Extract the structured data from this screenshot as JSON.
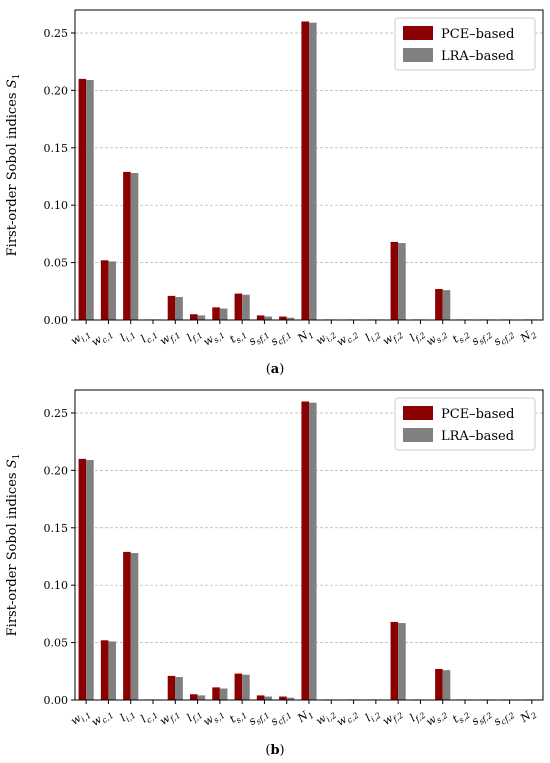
{
  "colors": {
    "pce": "#8b0000",
    "lra": "#808080",
    "grid": "#b0b0b0",
    "axis": "#000000"
  },
  "chart_data": [
    {
      "panel": "a",
      "type": "bar",
      "ylabel": "First-order Sobol indices S₁",
      "ylim": [
        0,
        0.27
      ],
      "yticks": [
        "0.00",
        "0.05",
        "0.10",
        "0.15",
        "0.20",
        "0.25"
      ],
      "grid": "horizontal-dashed",
      "legend": "top-right",
      "categories": [
        "w_i,1",
        "w_c,1",
        "l_i,1",
        "l_c,1",
        "w_f,1",
        "l_f,1",
        "w_s,1",
        "t_s,1",
        "s_sf,1",
        "s_cf,1",
        "N_1",
        "w_i,2",
        "w_c,2",
        "l_i,2",
        "w_f,2",
        "l_f,2",
        "w_s,2",
        "t_s,2",
        "s_sf,2",
        "s_cf,2",
        "N_2"
      ],
      "series": [
        {
          "name": "PCE–based",
          "values": [
            0.21,
            0.052,
            0.129,
            0.0005,
            0.021,
            0.005,
            0.011,
            0.023,
            0.004,
            0.003,
            0.26,
            0.0005,
            0.0005,
            0.0005,
            0.068,
            0.0005,
            0.027,
            0.0005,
            0.0005,
            0.0005,
            0.0005
          ]
        },
        {
          "name": "LRA–based",
          "values": [
            0.209,
            0.051,
            0.128,
            0.0005,
            0.02,
            0.004,
            0.01,
            0.022,
            0.003,
            0.002,
            0.259,
            0.0005,
            0.0005,
            0.0005,
            0.067,
            0.0005,
            0.026,
            0.0005,
            0.0005,
            0.0005,
            0.0005
          ]
        }
      ]
    },
    {
      "panel": "b",
      "type": "bar",
      "ylabel": "First-order Sobol indices S₁",
      "ylim": [
        0,
        0.27
      ],
      "yticks": [
        "0.00",
        "0.05",
        "0.10",
        "0.15",
        "0.20",
        "0.25"
      ],
      "grid": "horizontal-dashed",
      "legend": "top-right",
      "categories": [
        "w_i,1",
        "w_c,1",
        "l_i,1",
        "l_c,1",
        "w_f,1",
        "l_f,1",
        "w_s,1",
        "t_s,1",
        "s_sf,1",
        "s_cf,1",
        "N_1",
        "w_i,2",
        "w_c,2",
        "l_i,2",
        "w_f,2",
        "l_f,2",
        "w_s,2",
        "t_s,2",
        "s_sf,2",
        "s_cf,2",
        "N_2"
      ],
      "series": [
        {
          "name": "PCE–based",
          "values": [
            0.21,
            0.052,
            0.129,
            0.0005,
            0.021,
            0.005,
            0.011,
            0.023,
            0.004,
            0.003,
            0.26,
            0.0005,
            0.0005,
            0.0005,
            0.068,
            0.0005,
            0.027,
            0.0005,
            0.0005,
            0.0005,
            0.0005
          ]
        },
        {
          "name": "LRA–based",
          "values": [
            0.209,
            0.051,
            0.128,
            0.0005,
            0.02,
            0.004,
            0.01,
            0.022,
            0.003,
            0.002,
            0.259,
            0.0005,
            0.0005,
            0.0005,
            0.067,
            0.0005,
            0.026,
            0.0005,
            0.0005,
            0.0005,
            0.0005
          ]
        }
      ]
    }
  ],
  "panel_labels": [
    "(a)",
    "(b)"
  ]
}
